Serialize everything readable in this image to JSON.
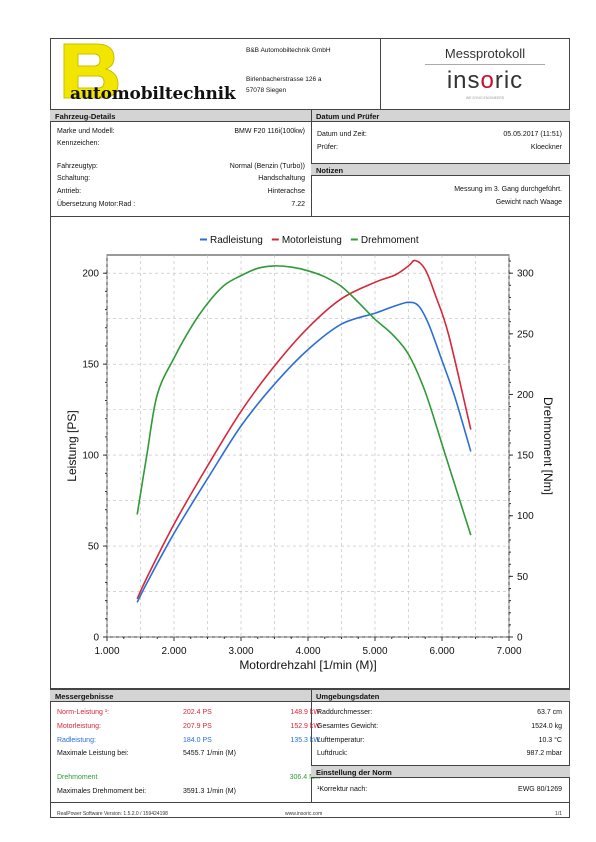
{
  "header": {
    "company_lines": [
      "B&B Automobiltechnik GmbH",
      "Birlenbacherstrasse 126 a",
      "57078 Siegen"
    ],
    "logo_text": "automobiltechnik",
    "logo_letter": "B",
    "protocol_title": "Messprotokoll",
    "brand": "ins",
    "brand_o": "o",
    "brand_rest": "ric",
    "brand_tagline": "WE DYNO ENGINEERS"
  },
  "vehicle": {
    "title": "Fahrzeug-Details",
    "rows": [
      {
        "label": "Marke und Modell:",
        "value": "BMW F20 116i(100kw)"
      },
      {
        "label": "Kennzeichen:",
        "value": ""
      },
      {
        "label": "Fahrzeugtyp:",
        "value": "Normal (Benzin (Turbo))"
      },
      {
        "label": "Schaltung:",
        "value": "Handschaltung"
      },
      {
        "label": "Antrieb:",
        "value": "Hinterachse"
      },
      {
        "label": "Übersetzung Motor:Rad :",
        "value": "7.22"
      }
    ]
  },
  "inspection": {
    "title": "Datum und Prüfer",
    "rows": [
      {
        "label": "Datum und Zeit:",
        "value": "05.05.2017 (11:51)"
      },
      {
        "label": "Prüfer:",
        "value": "Kloeckner"
      }
    ]
  },
  "notes": {
    "title": "Notizen",
    "lines": [
      "Messung im 3. Gang durchgeführt.",
      "Gewicht nach Waage"
    ]
  },
  "chart_data": {
    "type": "line",
    "legend": [
      "Radleistung",
      "Motorleistung",
      "Drehmoment"
    ],
    "xlabel": "Motordrehzahl [1/min (M)]",
    "ylabel": "Leistung [PS]",
    "y2label": "Drehmoment [Nm]",
    "xlim": [
      1000,
      7000
    ],
    "ylim": [
      0,
      210
    ],
    "y2lim": [
      0,
      315
    ],
    "xticks": [
      "1.000",
      "2.000",
      "3.000",
      "4.000",
      "5.000",
      "6.000",
      "7.000"
    ],
    "yticks": [
      0,
      50,
      100,
      150,
      200
    ],
    "y2ticks": [
      0,
      50,
      100,
      150,
      200,
      250,
      300
    ],
    "colors": {
      "Radleistung": "#2a6fd6",
      "Motorleistung": "#d6283a",
      "Drehmoment": "#2f9a37"
    },
    "series": [
      {
        "name": "Radleistung",
        "axis": "left",
        "x": [
          1450,
          1600,
          2000,
          2500,
          3000,
          3500,
          4000,
          4500,
          5000,
          5300,
          5500,
          5650,
          5800,
          6000,
          6200,
          6430
        ],
        "y": [
          19,
          30,
          57,
          87,
          116,
          139,
          158,
          172,
          178,
          182,
          184,
          182,
          172,
          152,
          131,
          102
        ]
      },
      {
        "name": "Motorleistung",
        "axis": "left",
        "x": [
          1450,
          1600,
          2000,
          2500,
          3000,
          3500,
          4000,
          4500,
          5000,
          5300,
          5500,
          5600,
          5750,
          5900,
          6100,
          6430
        ],
        "y": [
          21,
          33,
          62,
          94,
          124,
          149,
          170,
          186,
          195,
          199,
          204,
          207,
          202,
          188,
          166,
          114
        ]
      },
      {
        "name": "Drehmoment",
        "axis": "right",
        "x": [
          1450,
          1600,
          1750,
          2000,
          2250,
          2500,
          2750,
          3000,
          3250,
          3500,
          3750,
          4000,
          4250,
          4500,
          4750,
          5000,
          5250,
          5500,
          5750,
          6000,
          6200,
          6430
        ],
        "y": [
          101,
          152,
          200,
          230,
          255,
          275,
          290,
          298,
          304,
          306,
          305,
          302,
          297,
          289,
          276,
          262,
          250,
          233,
          202,
          159,
          124,
          84
        ]
      }
    ]
  },
  "results": {
    "title": "Messergebnisse",
    "rows": [
      {
        "label": "Norm-Leistung ¹:",
        "v1": "202.4 PS",
        "v2": "148.9 kW",
        "color": "#d6283a"
      },
      {
        "label": "Motorleistung:",
        "v1": "207.9 PS",
        "v2": "152.9 kW",
        "color": "#d6283a"
      },
      {
        "label": "Radleistung:",
        "v1": "184.0 PS",
        "v2": "135.3 kW",
        "color": "#2a6fd6"
      },
      {
        "label": "Maximale Leistung bei:",
        "v1": "5455.7 1/min (M)",
        "v2": "",
        "color": "#111111"
      },
      {
        "label": "Drehmoment",
        "v1": "",
        "v2": "306.4 Nm",
        "color": "#2f9a37"
      },
      {
        "label": "Maximales Drehmoment bei:",
        "v1": "3591.3 1/min (M)",
        "v2": "",
        "color": "#111111"
      }
    ]
  },
  "environment": {
    "title": "Umgebungsdaten",
    "rows": [
      {
        "label": "Raddurchmesser:",
        "value": "63.7 cm"
      },
      {
        "label": "Gesamtes Gewicht:",
        "value": "1524.0 kg"
      },
      {
        "label": "Lufttemperatur:",
        "value": "10.3 °C"
      },
      {
        "label": "Luftdruck:",
        "value": "987.2 mbar"
      }
    ]
  },
  "norm": {
    "title": "Einstellung der Norm",
    "label": "¹Korrektur nach:",
    "value": "EWG 80/1269"
  },
  "footer": {
    "software": "RealPower Software Version: 1.5.2.0 / 159424198",
    "url": "www.insoric.com",
    "page": "1/1"
  }
}
